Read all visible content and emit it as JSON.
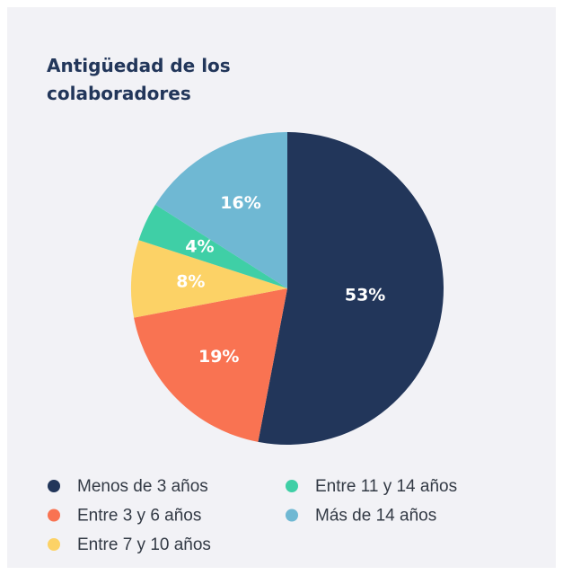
{
  "chart_data": {
    "type": "pie",
    "title": "Antigüedad de los colaboradores",
    "categories": [
      "Menos de 3 años",
      "Entre 3 y 6 años",
      "Entre 7 y 10 años",
      "Entre 11 y 14 años",
      "Más de 14 años"
    ],
    "values": [
      53,
      19,
      8,
      4,
      16
    ],
    "value_labels": [
      "53%",
      "19%",
      "8%",
      "4%",
      "16%"
    ],
    "colors": [
      "#22365a",
      "#f97352",
      "#fcd266",
      "#3fcfa6",
      "#6fb8d3"
    ]
  }
}
